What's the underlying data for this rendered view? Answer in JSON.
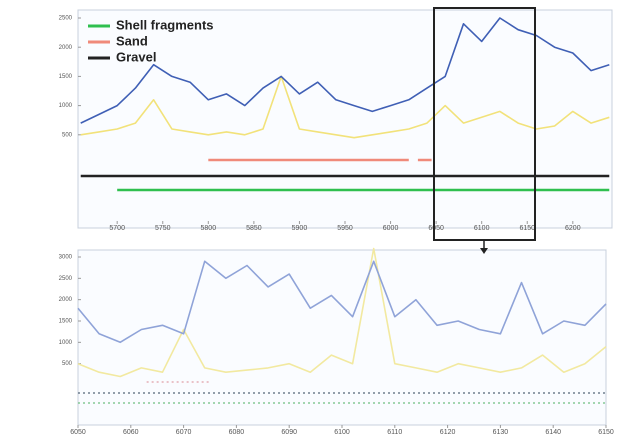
{
  "chart_data": [
    {
      "type": "line",
      "legend": "upper left",
      "grid": false,
      "xlim": [
        5657,
        6243
      ],
      "ylim": [
        0,
        2500
      ],
      "xticks": [
        5700,
        5750,
        5800,
        5850,
        5900,
        5950,
        6000,
        6050,
        6100,
        6150,
        6200
      ],
      "yticks": [
        500,
        1000,
        1500,
        2000,
        2500
      ],
      "series": [
        {
          "color": "#f2e27a",
          "x": [
            5660,
            5680,
            5700,
            5720,
            5740,
            5760,
            5780,
            5800,
            5820,
            5840,
            5860,
            5880,
            5900,
            5920,
            5940,
            5960,
            5980,
            6000,
            6020,
            6040,
            6060,
            6080,
            6100,
            6120,
            6140,
            6160,
            6180,
            6200,
            6220,
            6240
          ],
          "values": [
            500,
            550,
            600,
            700,
            1100,
            600,
            550,
            500,
            550,
            500,
            600,
            1500,
            600,
            550,
            500,
            450,
            500,
            550,
            600,
            700,
            1000,
            700,
            800,
            900,
            700,
            600,
            650,
            900,
            700,
            800
          ]
        },
        {
          "color": "#3f5fb5",
          "x": [
            5660,
            5680,
            5700,
            5720,
            5740,
            5760,
            5780,
            5800,
            5820,
            5840,
            5860,
            5880,
            5900,
            5920,
            5940,
            5960,
            5980,
            6000,
            6020,
            6040,
            6060,
            6080,
            6100,
            6120,
            6140,
            6160,
            6180,
            6200,
            6220,
            6240
          ],
          "values": [
            700,
            850,
            1000,
            1300,
            1700,
            1500,
            1400,
            1100,
            1200,
            1000,
            1300,
            1500,
            1200,
            1400,
            1100,
            1000,
            900,
            1000,
            1100,
            1300,
            1500,
            2400,
            2100,
            2500,
            2300,
            2200,
            2000,
            1900,
            1600,
            1700
          ]
        }
      ],
      "indicators": [
        {
          "name": "Shell fragments",
          "color": "#2fbf4f",
          "ranges": [
            [
              5700,
              6240
            ]
          ]
        },
        {
          "name": "Sand",
          "color": "#f08a7a",
          "ranges": [
            [
              5800,
              6020
            ],
            [
              6030,
              6045
            ]
          ]
        },
        {
          "name": "Gravel",
          "color": "#222222",
          "ranges": [
            [
              5660,
              6240
            ]
          ]
        }
      ]
    },
    {
      "type": "line",
      "grid": false,
      "xlim": [
        6050,
        6150
      ],
      "ylim": [
        0,
        3000
      ],
      "xticks": [
        6050,
        6060,
        6070,
        6080,
        6090,
        6100,
        6110,
        6120,
        6130,
        6140,
        6150
      ],
      "yticks": [
        500,
        1000,
        1500,
        2000,
        2500,
        3000
      ],
      "series": [
        {
          "color": "#f2e9a0",
          "x": [
            6050,
            6054,
            6058,
            6062,
            6066,
            6070,
            6074,
            6078,
            6082,
            6086,
            6090,
            6094,
            6098,
            6102,
            6106,
            6110,
            6114,
            6118,
            6122,
            6126,
            6130,
            6134,
            6138,
            6142,
            6146,
            6150
          ],
          "values": [
            500,
            300,
            200,
            400,
            300,
            1300,
            400,
            300,
            350,
            400,
            500,
            300,
            700,
            500,
            3200,
            500,
            400,
            300,
            500,
            400,
            300,
            400,
            700,
            300,
            500,
            900
          ]
        },
        {
          "color": "#8fa3d8",
          "x": [
            6050,
            6054,
            6058,
            6062,
            6066,
            6070,
            6074,
            6078,
            6082,
            6086,
            6090,
            6094,
            6098,
            6102,
            6106,
            6110,
            6114,
            6118,
            6122,
            6126,
            6130,
            6134,
            6138,
            6142,
            6146,
            6150
          ],
          "values": [
            1800,
            1200,
            1000,
            1300,
            1400,
            1200,
            2900,
            2500,
            2800,
            2300,
            2600,
            1800,
            2100,
            1600,
            2900,
            1600,
            2000,
            1400,
            1500,
            1300,
            1200,
            2400,
            1200,
            1500,
            1400,
            1900
          ]
        }
      ],
      "indicators": [
        {
          "color": "#e0a0a8",
          "ranges": [
            [
              6063,
              6075
            ]
          ]
        },
        {
          "color": "#556677",
          "ranges": [
            [
              6050,
              6150
            ]
          ]
        },
        {
          "color": "#6fbf80",
          "ranges": [
            [
              6050,
              6150
            ]
          ]
        }
      ]
    }
  ]
}
